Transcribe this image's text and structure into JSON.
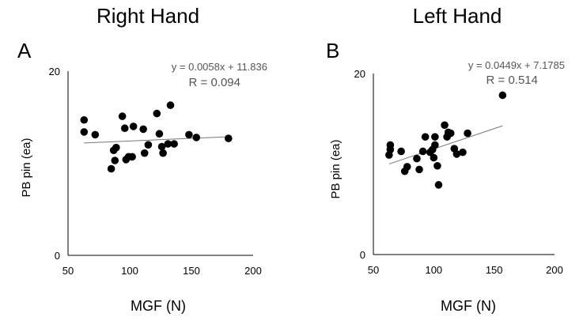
{
  "chart_data": [
    {
      "type": "scatter",
      "panel": "A",
      "title": "Right Hand",
      "xlabel": "MGF (N)",
      "ylabel": "PB pin (ea)",
      "xlim": [
        50,
        200
      ],
      "ylim": [
        0,
        20
      ],
      "xticks": [
        "50",
        "100",
        "150",
        "200"
      ],
      "yticks": [
        "0",
        "20"
      ],
      "equation": "y = 0.0058x + 11.836",
      "r_label": "R  =  0.094",
      "trendline": {
        "slope": 0.0058,
        "intercept": 11.836,
        "x_range": [
          63,
          180
        ]
      },
      "points": [
        [
          63,
          14.7
        ],
        [
          63,
          13.4
        ],
        [
          72,
          13.1
        ],
        [
          85,
          9.4
        ],
        [
          87,
          11.4
        ],
        [
          88,
          10.3
        ],
        [
          89,
          11.7
        ],
        [
          94,
          15.1
        ],
        [
          96,
          13.8
        ],
        [
          97,
          10.4
        ],
        [
          99,
          10.7
        ],
        [
          102,
          10.7
        ],
        [
          103,
          14.0
        ],
        [
          111,
          13.7
        ],
        [
          112,
          11.1
        ],
        [
          115,
          12.0
        ],
        [
          122,
          15.4
        ],
        [
          124,
          13.2
        ],
        [
          126,
          11.8
        ],
        [
          127,
          11.1
        ],
        [
          131,
          12.1
        ],
        [
          133,
          16.3
        ],
        [
          136,
          12.1
        ],
        [
          148,
          13.1
        ],
        [
          154,
          12.8
        ],
        [
          180,
          12.7
        ]
      ]
    },
    {
      "type": "scatter",
      "panel": "B",
      "title": "Left Hand",
      "xlabel": "MGF (N)",
      "ylabel": "PB pin (ea)",
      "xlim": [
        50,
        200
      ],
      "ylim": [
        0,
        20
      ],
      "xticks": [
        "50",
        "100",
        "150",
        "200"
      ],
      "yticks": [
        "0",
        "20"
      ],
      "equation": "y = 0.0449x + 7.1785",
      "r_label": "R  =  0.514",
      "trendline": {
        "slope": 0.0449,
        "intercept": 7.1785,
        "x_range": [
          63,
          157
        ]
      },
      "points": [
        [
          63,
          11.0
        ],
        [
          64,
          11.6
        ],
        [
          64,
          12.1
        ],
        [
          73,
          11.4
        ],
        [
          76,
          9.2
        ],
        [
          78,
          9.7
        ],
        [
          86,
          10.6
        ],
        [
          88,
          9.4
        ],
        [
          91,
          11.4
        ],
        [
          93,
          13.0
        ],
        [
          97,
          11.3
        ],
        [
          99,
          11.6
        ],
        [
          100,
          10.7
        ],
        [
          101,
          12.1
        ],
        [
          101,
          13.0
        ],
        [
          103,
          9.8
        ],
        [
          104,
          7.7
        ],
        [
          109,
          14.3
        ],
        [
          111,
          13.0
        ],
        [
          112,
          13.5
        ],
        [
          114,
          13.4
        ],
        [
          117,
          11.7
        ],
        [
          119,
          11.1
        ],
        [
          124,
          11.3
        ],
        [
          128,
          13.4
        ],
        [
          157,
          17.6
        ]
      ]
    }
  ]
}
